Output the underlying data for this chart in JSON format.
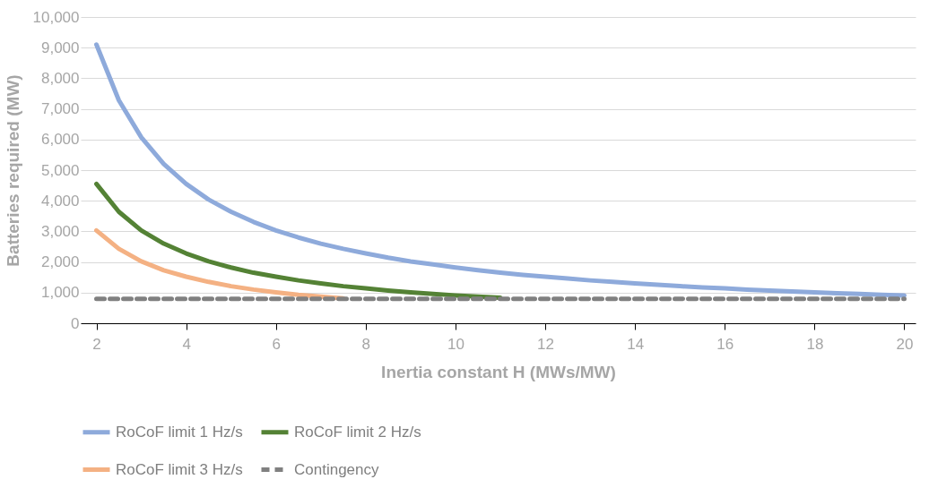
{
  "chart_data": {
    "type": "line",
    "xlabel": "Inertia constant H (MWs/MW)",
    "ylabel": "Batteries required (MW)",
    "x": [
      2,
      2.5,
      3,
      3.5,
      4,
      4.5,
      5,
      5.5,
      6,
      6.5,
      7,
      7.5,
      8,
      8.5,
      9,
      9.5,
      10,
      10.5,
      11,
      11.5,
      12,
      12.5,
      13,
      13.5,
      14,
      14.5,
      15,
      15.5,
      16,
      16.5,
      17,
      17.5,
      18,
      18.5,
      19,
      19.5,
      20
    ],
    "series": [
      {
        "name": "RoCoF limit 1 Hz/s",
        "color": "#8eaadb",
        "values": [
          9100,
          7280,
          6070,
          5200,
          4550,
          4040,
          3640,
          3310,
          3030,
          2800,
          2600,
          2430,
          2280,
          2140,
          2020,
          1920,
          1820,
          1730,
          1650,
          1580,
          1520,
          1460,
          1400,
          1350,
          1300,
          1260,
          1210,
          1170,
          1140,
          1100,
          1070,
          1040,
          1010,
          980,
          960,
          930,
          910
        ]
      },
      {
        "name": "RoCoF limit 2 Hz/s",
        "color": "#548235",
        "values": [
          4550,
          3640,
          3030,
          2600,
          2280,
          2020,
          1820,
          1650,
          1520,
          1400,
          1300,
          1210,
          1140,
          1070,
          1010,
          960,
          910,
          870,
          830,
          null,
          null,
          null,
          null,
          null,
          null,
          null,
          null,
          null,
          null,
          null,
          null,
          null,
          null,
          null,
          null,
          null,
          null
        ]
      },
      {
        "name": "RoCoF limit 3 Hz/s",
        "color": "#f4b183",
        "values": [
          3030,
          2430,
          2020,
          1730,
          1520,
          1350,
          1210,
          1100,
          1010,
          930,
          870,
          810,
          null,
          null,
          null,
          null,
          null,
          null,
          null,
          null,
          null,
          null,
          null,
          null,
          null,
          null,
          null,
          null,
          null,
          null,
          null,
          null,
          null,
          null,
          null,
          null,
          null
        ]
      },
      {
        "name": "Contingency",
        "color": "#808080",
        "line_style": "dashed",
        "values": [
          800,
          800,
          800,
          800,
          800,
          800,
          800,
          800,
          800,
          800,
          800,
          800,
          800,
          800,
          800,
          800,
          800,
          800,
          800,
          800,
          800,
          800,
          800,
          800,
          800,
          800,
          800,
          800,
          800,
          800,
          800,
          800,
          800,
          800,
          800,
          800,
          800
        ]
      }
    ],
    "xlim": [
      1.65,
      20.25
    ],
    "xticks": [
      2,
      4,
      6,
      8,
      10,
      12,
      14,
      16,
      18,
      20
    ],
    "ylim": [
      0,
      10000
    ],
    "yticks": [
      0,
      {
        "value": 1000,
        "label": "1,000"
      },
      {
        "value": 2000,
        "label": "2,000"
      },
      {
        "value": 3000,
        "label": "3,000"
      },
      {
        "value": 4000,
        "label": "4,000"
      },
      {
        "value": 5000,
        "label": "5,000"
      },
      {
        "value": 6000,
        "label": "6,000"
      },
      {
        "value": 7000,
        "label": "7,000"
      },
      {
        "value": 8000,
        "label": "8,000"
      },
      {
        "value": 9000,
        "label": "9,000"
      },
      {
        "value": 10000,
        "label": "10,000"
      }
    ],
    "grid": "y",
    "legend": "bottom",
    "line_style": "solid"
  }
}
